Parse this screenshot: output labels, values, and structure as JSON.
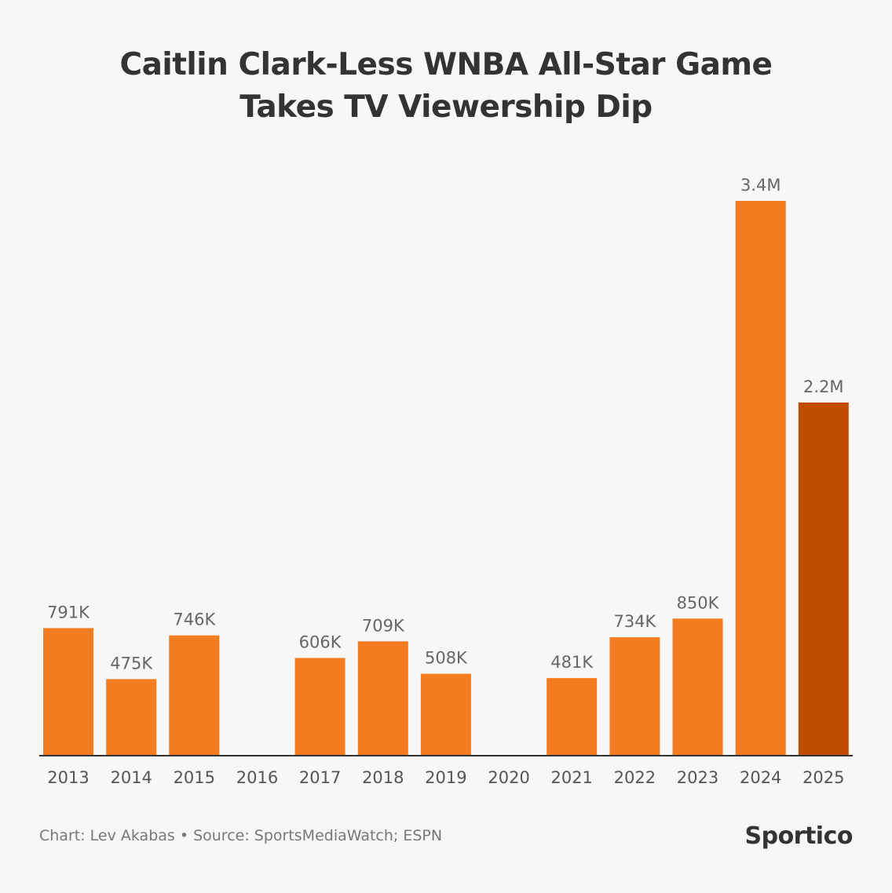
{
  "title_lines": [
    "Caitlin Clark-Less WNBA All-Star Game",
    "Takes TV Viewership Dip"
  ],
  "footer": {
    "credit": "Chart: Lev Akabas • Source: SportsMediaWatch; ESPN",
    "logo": "Sportico"
  },
  "colors": {
    "bar": "#f47c20",
    "highlight": "#c04c00",
    "axis": "#333333",
    "background": "#f7f7f7"
  },
  "chart_data": {
    "type": "bar",
    "title": "Caitlin Clark-Less WNBA All-Star Game Takes TV Viewership Dip",
    "xlabel": "",
    "ylabel": "",
    "categories": [
      "2013",
      "2014",
      "2015",
      "2016",
      "2017",
      "2018",
      "2019",
      "2020",
      "2021",
      "2022",
      "2023",
      "2024",
      "2025"
    ],
    "values": [
      791000,
      475000,
      746000,
      null,
      606000,
      709000,
      508000,
      null,
      481000,
      734000,
      850000,
      3440000,
      2190000
    ],
    "labels": [
      "791K",
      "475K",
      "746K",
      "",
      "606K",
      "709K",
      "508K",
      "",
      "481K",
      "734K",
      "850K",
      "3.4M",
      "2.2M"
    ],
    "highlighted_category": "2025",
    "ylim": [
      0,
      3440000
    ],
    "grid": false,
    "legend": "none"
  }
}
